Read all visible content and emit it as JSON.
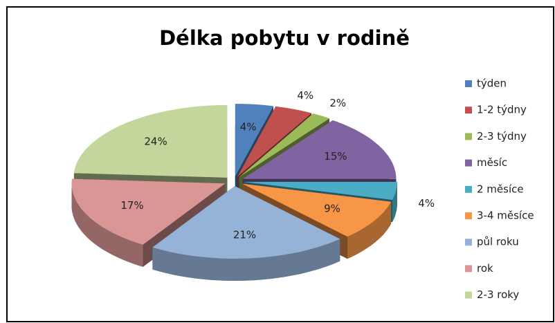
{
  "chart_data": {
    "type": "pie",
    "title": "Délka pobytu v rodině",
    "categories": [
      "týden",
      "1-2 týdny",
      "2-3 týdny",
      "měsíc",
      "2 měsíce",
      "3-4 měsíce",
      "půl roku",
      "rok",
      "2-3 roky"
    ],
    "values": [
      4,
      4,
      2,
      15,
      4,
      9,
      21,
      17,
      24
    ],
    "value_labels": [
      "4%",
      "4%",
      "2%",
      "15%",
      "4%",
      "9%",
      "21%",
      "17%",
      "24%"
    ],
    "colors": [
      "#4f81bd",
      "#c0504d",
      "#9bbb59",
      "#8064a2",
      "#4bacc6",
      "#f79646",
      "#95b3d7",
      "#d99694",
      "#c3d69b"
    ],
    "legend": "right"
  }
}
